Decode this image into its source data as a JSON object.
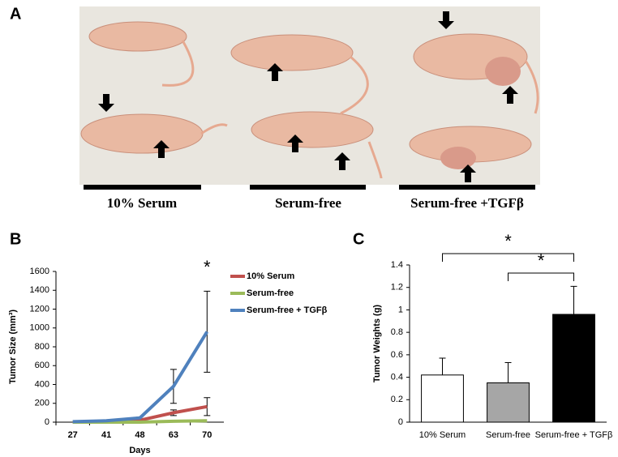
{
  "panel_labels": [
    "A",
    "B",
    "C"
  ],
  "photo_groups": [
    "10% Serum",
    "Serum-free",
    "Serum-free +TGFβ"
  ],
  "chart_data": [
    {
      "type": "line",
      "x_label": "Days",
      "y_label": "Tumor Size (mm³)",
      "annotation": "*",
      "categories": [
        "27",
        "41",
        "48",
        "63",
        "70"
      ],
      "series": [
        {
          "name": "10% Serum",
          "color": "#c0504d",
          "values": [
            0,
            5,
            20,
            100,
            165
          ],
          "errors": [
            null,
            null,
            5,
            30,
            95
          ]
        },
        {
          "name": "Serum-free",
          "color": "#9bbb59",
          "values": [
            0,
            0,
            0,
            10,
            15
          ],
          "errors": [
            null,
            null,
            null,
            null,
            null
          ]
        },
        {
          "name": "Serum-free + TGFβ",
          "color": "#4f81bd",
          "values": [
            5,
            15,
            45,
            380,
            960
          ],
          "errors": [
            null,
            null,
            10,
            180,
            430
          ]
        }
      ],
      "ylim": [
        0,
        1600
      ],
      "yticks": [
        0,
        200,
        400,
        600,
        800,
        1000,
        1200,
        1400,
        1600
      ]
    },
    {
      "type": "bar",
      "y_label": "Tumor Weights (g)",
      "annotations": [
        "*",
        "*"
      ],
      "categories": [
        "10% Serum",
        "Serum-free",
        "Serum-free + TGFβ"
      ],
      "values": [
        0.42,
        0.35,
        0.96
      ],
      "errors": [
        0.15,
        0.18,
        0.25
      ],
      "colors": [
        "#ffffff",
        "#a6a6a6",
        "#000000"
      ],
      "ylim": [
        0,
        1.4
      ],
      "yticks": [
        0,
        0.2,
        0.4,
        0.6,
        0.8,
        1,
        1.2,
        1.4
      ]
    }
  ]
}
